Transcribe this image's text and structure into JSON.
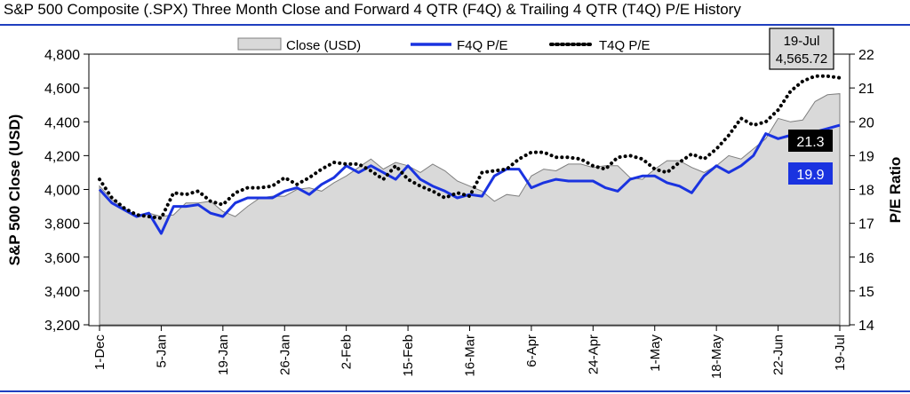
{
  "title": "S&P 500 Composite (.SPX) Three Month Close and Forward 4 QTR (F4Q) & Trailing 4 QTR (T4Q) P/E History",
  "chart_data": {
    "type": "area",
    "x_labels": [
      "1-Dec",
      "5-Jan",
      "19-Jan",
      "26-Jan",
      "2-Feb",
      "15-Feb",
      "16-Mar",
      "6-Apr",
      "24-Apr",
      "1-May",
      "18-May",
      "22-Jun",
      "19-Jul"
    ],
    "x_label_index": [
      0,
      7,
      14,
      21,
      28,
      35,
      42,
      49,
      56,
      63,
      70,
      77,
      84
    ],
    "ylabel_left": "S&P 500 Close (USD)",
    "ylabel_right": "P/E Ratio",
    "ylim_left": [
      3200,
      4800
    ],
    "ylim_right": [
      14,
      22
    ],
    "left_ticks": [
      "3,200",
      "3,400",
      "3,600",
      "3,800",
      "4,000",
      "4,200",
      "4,400",
      "4,600",
      "4,800"
    ],
    "right_ticks": [
      "14",
      "15",
      "16",
      "17",
      "18",
      "19",
      "20",
      "21",
      "22"
    ],
    "legend": [
      "Close (USD)",
      "F4Q P/E",
      "T4Q P/E"
    ],
    "legend_position": "top",
    "grid": false,
    "series": [
      {
        "name": "Close (USD)",
        "axis": "left",
        "color": "#d9d9d9",
        "values": [
          4020,
          3940,
          3890,
          3840,
          3860,
          3840,
          3850,
          3920,
          3920,
          3930,
          3870,
          3840,
          3900,
          3950,
          3960,
          3960,
          4000,
          4010,
          3990,
          4040,
          4080,
          4130,
          4180,
          4120,
          4160,
          4140,
          4100,
          4150,
          4110,
          4050,
          4020,
          3990,
          3930,
          3970,
          3960,
          4080,
          4120,
          4110,
          4150,
          4150,
          4130,
          4140,
          4140,
          4070,
          4060,
          4120,
          4170,
          4170,
          4130,
          4100,
          4140,
          4200,
          4180,
          4240,
          4300,
          4420,
          4400,
          4410,
          4520,
          4560,
          4566
        ]
      },
      {
        "name": "F4Q P/E",
        "axis": "right",
        "color": "#1a33e0",
        "values": [
          18.0,
          17.6,
          17.4,
          17.2,
          17.3,
          16.7,
          17.5,
          17.5,
          17.55,
          17.3,
          17.2,
          17.6,
          17.75,
          17.75,
          17.75,
          17.95,
          18.05,
          17.85,
          18.15,
          18.35,
          18.7,
          18.5,
          18.7,
          18.5,
          18.3,
          18.7,
          18.3,
          18.1,
          17.95,
          17.75,
          17.85,
          17.8,
          18.4,
          18.6,
          18.6,
          18.05,
          18.2,
          18.3,
          18.25,
          18.25,
          18.25,
          18.05,
          17.95,
          18.3,
          18.4,
          18.4,
          18.2,
          18.1,
          17.9,
          18.4,
          18.7,
          18.5,
          18.7,
          19.0,
          19.65,
          19.5,
          19.6,
          19.6,
          19.7,
          19.8,
          19.9
        ]
      },
      {
        "name": "T4Q P/E",
        "axis": "right",
        "color": "#000000",
        "values": [
          18.3,
          17.75,
          17.45,
          17.25,
          17.2,
          17.15,
          17.9,
          17.85,
          17.95,
          17.65,
          17.55,
          17.9,
          18.05,
          18.05,
          18.1,
          18.35,
          18.15,
          18.35,
          18.6,
          18.8,
          18.75,
          18.75,
          18.55,
          18.3,
          18.7,
          18.3,
          18.1,
          17.95,
          17.75,
          17.9,
          17.8,
          18.5,
          18.55,
          18.6,
          18.9,
          19.1,
          19.1,
          18.95,
          18.95,
          18.9,
          18.7,
          18.6,
          18.95,
          19.0,
          18.9,
          18.6,
          18.5,
          18.8,
          19.05,
          18.9,
          19.2,
          19.6,
          20.1,
          19.9,
          20.0,
          20.35,
          20.9,
          21.2,
          21.35,
          21.35,
          21.3
        ]
      }
    ],
    "annotations": {
      "date_box": {
        "line1": "19-Jul",
        "line2": "4,565.72"
      },
      "t4q_label": "21.3",
      "f4q_label": "19.9"
    }
  }
}
